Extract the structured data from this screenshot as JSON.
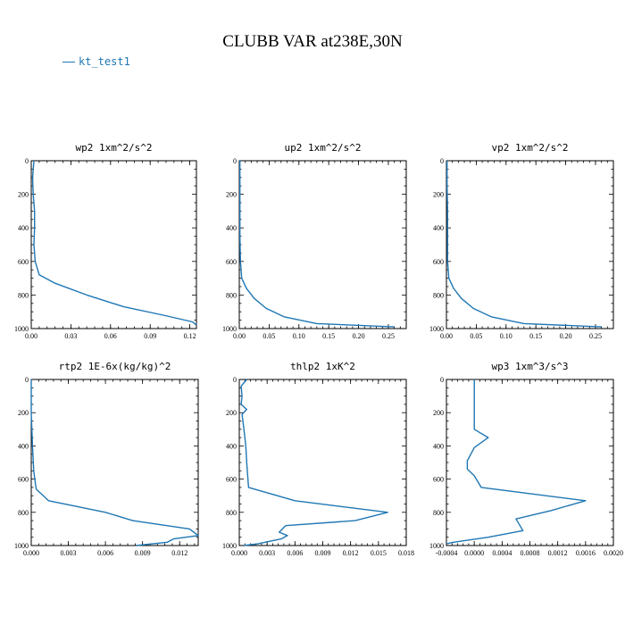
{
  "title": "CLUBB VAR at238E,30N",
  "legend": {
    "label": "kt_test1",
    "color": "#1f77b4"
  },
  "chart_data": [
    {
      "type": "line",
      "title": "wp2  1xm^2/s^2",
      "xlim": [
        0,
        0.125
      ],
      "ylim": [
        1000,
        0
      ],
      "xticks": [
        0,
        0.03,
        0.06,
        0.09,
        0.12
      ],
      "xtick_labels": [
        "0.00",
        "0.03",
        "0.06",
        "0.09",
        "0.12"
      ],
      "yticks": [
        0,
        200,
        400,
        600,
        800,
        1000
      ],
      "ytick_labels": [
        "0",
        "200",
        "400",
        "600",
        "800",
        "1000"
      ],
      "series": [
        {
          "name": "kt_test1",
          "x": [
            0.002,
            0.001,
            0.0015,
            0.0025,
            0.0025,
            0.002,
            0.003,
            0.006,
            0.018,
            0.042,
            0.07,
            0.1,
            0.122,
            0.125
          ],
          "y": [
            0,
            100,
            200,
            300,
            400,
            500,
            600,
            680,
            730,
            800,
            870,
            920,
            960,
            980
          ]
        }
      ]
    },
    {
      "type": "line",
      "title": "up2  1xm^2/s^2",
      "xlim": [
        0,
        0.28
      ],
      "ylim": [
        1000,
        0
      ],
      "xticks": [
        0,
        0.05,
        0.1,
        0.15,
        0.2,
        0.25
      ],
      "xtick_labels": [
        "0.00",
        "0.05",
        "0.10",
        "0.15",
        "0.20",
        "0.25"
      ],
      "yticks": [
        0,
        200,
        400,
        600,
        800,
        1000
      ],
      "ytick_labels": [
        "0",
        "200",
        "400",
        "600",
        "800",
        "1000"
      ],
      "series": [
        {
          "name": "kt_test1",
          "x": [
            0.001,
            0.001,
            0.001,
            0.001,
            0.002,
            0.004,
            0.012,
            0.025,
            0.045,
            0.075,
            0.13,
            0.26
          ],
          "y": [
            0,
            150,
            300,
            450,
            600,
            700,
            760,
            820,
            880,
            930,
            970,
            990
          ]
        }
      ]
    },
    {
      "type": "line",
      "title": "vp2  1xm^2/s^2",
      "xlim": [
        0,
        0.28
      ],
      "ylim": [
        1000,
        0
      ],
      "xticks": [
        0,
        0.05,
        0.1,
        0.15,
        0.2,
        0.25
      ],
      "xtick_labels": [
        "0.00",
        "0.05",
        "0.10",
        "0.15",
        "0.20",
        "0.25"
      ],
      "yticks": [
        0,
        200,
        400,
        600,
        800,
        1000
      ],
      "ytick_labels": [
        "0",
        "200",
        "400",
        "600",
        "800",
        "1000"
      ],
      "series": [
        {
          "name": "kt_test1",
          "x": [
            0.001,
            0.001,
            0.002,
            0.002,
            0.002,
            0.004,
            0.012,
            0.025,
            0.045,
            0.075,
            0.13,
            0.26
          ],
          "y": [
            0,
            150,
            300,
            450,
            600,
            700,
            760,
            820,
            880,
            930,
            970,
            990
          ]
        }
      ]
    },
    {
      "type": "line",
      "title": "rtp2  1E-6x(kg/kg)^2",
      "xlim": [
        0,
        0.0135
      ],
      "ylim": [
        1000,
        0
      ],
      "xticks": [
        0,
        0.003,
        0.006,
        0.009,
        0.012
      ],
      "xtick_labels": [
        "0.000",
        "0.003",
        "0.006",
        "0.009",
        "0.012"
      ],
      "yticks": [
        0,
        200,
        400,
        600,
        800,
        1000
      ],
      "ytick_labels": [
        "0",
        "200",
        "400",
        "600",
        "800",
        "1000"
      ],
      "series": [
        {
          "name": "kt_test1",
          "x": [
            0,
            0,
            0.0001,
            0.0002,
            0.0004,
            0.0014,
            0.006,
            0.0082,
            0.0128,
            0.0135,
            0.0115,
            0.011,
            0.0085
          ],
          "y": [
            0,
            200,
            400,
            550,
            660,
            730,
            800,
            850,
            900,
            940,
            960,
            980,
            1000
          ]
        }
      ]
    },
    {
      "type": "line",
      "title": "thlp2  1xK^2",
      "xlim": [
        0,
        0.018
      ],
      "ylim": [
        1000,
        0
      ],
      "xticks": [
        0,
        0.003,
        0.006,
        0.009,
        0.012,
        0.015,
        0.018
      ],
      "xtick_labels": [
        "0.000",
        "0.003",
        "0.006",
        "0.009",
        "0.012",
        "0.015",
        "0.018"
      ],
      "yticks": [
        0,
        200,
        400,
        600,
        800,
        1000
      ],
      "ytick_labels": [
        "0",
        "200",
        "400",
        "600",
        "800",
        "1000"
      ],
      "series": [
        {
          "name": "kt_test1",
          "x": [
            0.0008,
            0.0002,
            0.0003,
            0.0002,
            0.0008,
            0.0003,
            0.0005,
            0.0007,
            0.0008,
            0.001,
            0.006,
            0.016,
            0.0125,
            0.005,
            0.0043,
            0.0052,
            0.0045,
            0.002,
            0.0005
          ],
          "y": [
            0,
            40,
            100,
            150,
            180,
            210,
            300,
            400,
            500,
            650,
            730,
            800,
            850,
            880,
            920,
            940,
            960,
            990,
            1000
          ]
        }
      ]
    },
    {
      "type": "line",
      "title": "wp3  1xm^3/s^3",
      "xlim": [
        -0.0004,
        0.002
      ],
      "ylim": [
        1000,
        0
      ],
      "xticks": [
        -0.0004,
        0,
        0.0004,
        0.0008,
        0.0012,
        0.0016,
        0.002
      ],
      "xtick_labels": [
        "-0.0004",
        "0.0000",
        "0.0004",
        "0.0008",
        "0.0012",
        "0.0016",
        "0.0020"
      ],
      "yticks": [
        0,
        200,
        400,
        600,
        800,
        1000
      ],
      "ytick_labels": [
        "0",
        "200",
        "400",
        "600",
        "800",
        "1000"
      ],
      "series": [
        {
          "name": "kt_test1",
          "x": [
            0,
            0,
            0,
            0,
            0.0002,
            0,
            -0.0001,
            -0.0001,
            0,
            0.0001,
            0.0016,
            0.0011,
            0.0006,
            0.0007,
            0.0002,
            -0.0003,
            -0.0004
          ],
          "y": [
            0,
            100,
            200,
            300,
            350,
            410,
            490,
            540,
            580,
            650,
            730,
            790,
            840,
            910,
            950,
            980,
            990
          ]
        }
      ]
    }
  ]
}
